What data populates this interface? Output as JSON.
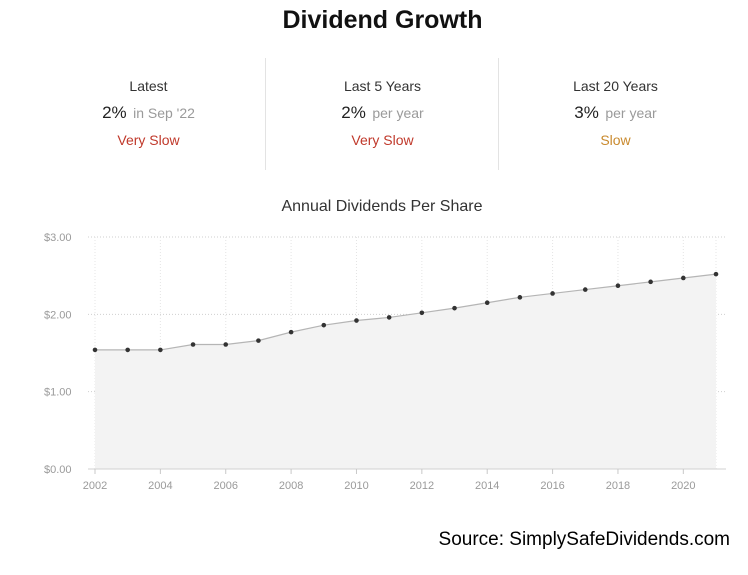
{
  "header": {
    "title": "Dividend Growth"
  },
  "stats": [
    {
      "label": "Latest",
      "value": "2%",
      "suffix": "in Sep '22",
      "rating": "Very Slow",
      "rating_color": "#c0392b"
    },
    {
      "label": "Last 5 Years",
      "value": "2%",
      "suffix": "per year",
      "rating": "Very Slow",
      "rating_color": "#c0392b"
    },
    {
      "label": "Last 20 Years",
      "value": "3%",
      "suffix": "per year",
      "rating": "Slow",
      "rating_color": "#c98a2e"
    }
  ],
  "chart_data": {
    "type": "area",
    "title": "Annual Dividends Per Share",
    "xlabel": "",
    "ylabel": "",
    "x": [
      2002,
      2003,
      2004,
      2005,
      2006,
      2007,
      2008,
      2009,
      2010,
      2011,
      2012,
      2013,
      2014,
      2015,
      2016,
      2017,
      2018,
      2019,
      2020,
      2021
    ],
    "series": [
      {
        "values": [
          1.54,
          1.54,
          1.54,
          1.61,
          1.61,
          1.66,
          1.77,
          1.86,
          1.92,
          1.96,
          2.02,
          2.08,
          2.15,
          2.22,
          2.27,
          2.32,
          2.37,
          2.42,
          2.47,
          2.52
        ]
      }
    ],
    "xlim": [
      2002,
      2021
    ],
    "ylim": [
      0,
      3
    ],
    "x_ticks": [
      "2002",
      "2004",
      "2006",
      "2008",
      "2010",
      "2012",
      "2014",
      "2016",
      "2018",
      "2020"
    ],
    "y_ticks": [
      "$0.00",
      "$1.00",
      "$2.00",
      "$3.00"
    ],
    "grid": true,
    "legend": "none",
    "fill_color": "#f3f3f3",
    "line_color": "#b5b5b5",
    "point_color": "#333333"
  },
  "footer": {
    "source": "Source: SimplySafeDividends.com"
  }
}
